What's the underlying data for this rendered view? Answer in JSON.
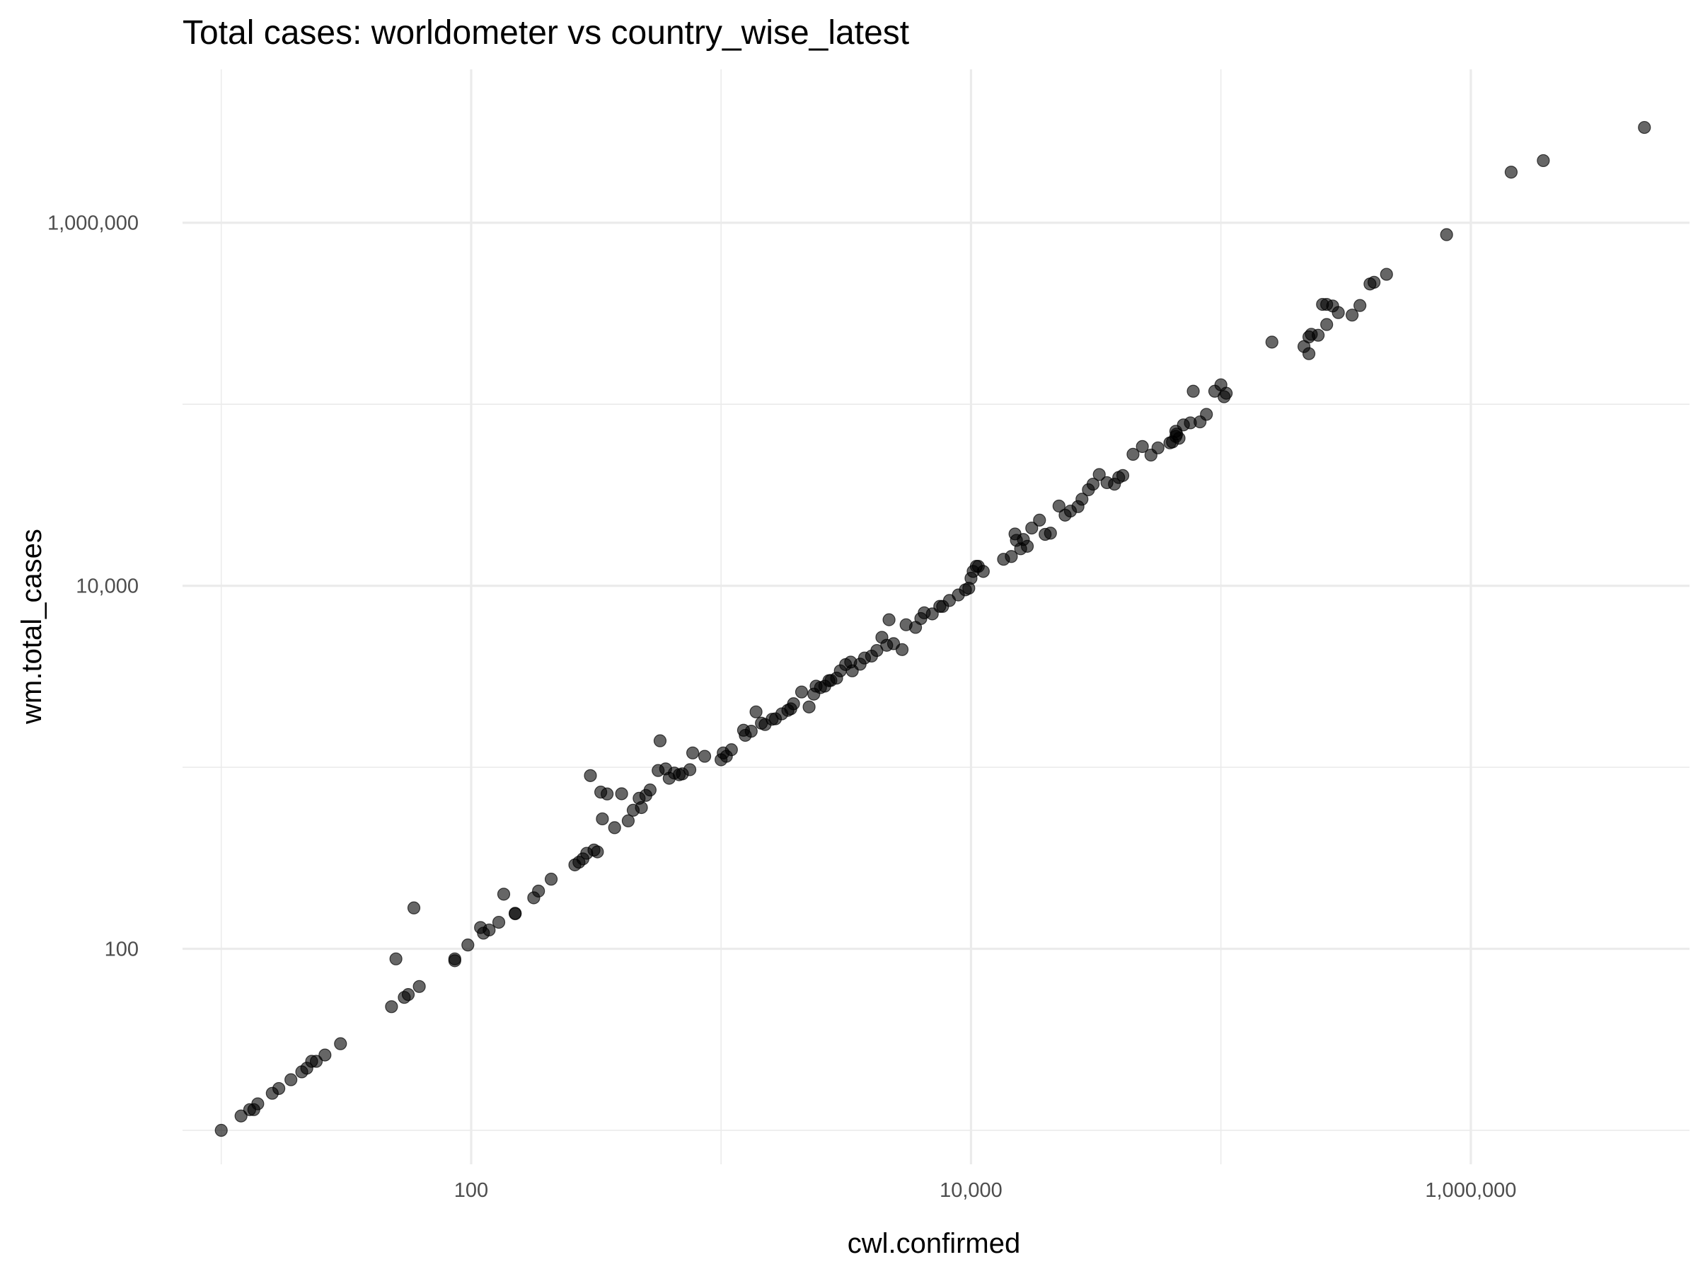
{
  "chart_data": {
    "type": "scatter",
    "title": "Total cases: worldometer vs country_wise_latest",
    "xlabel": "cwl.confirmed",
    "ylabel": "wm.total_cases",
    "x_scale": "log10",
    "y_scale": "log10",
    "xlim": [
      7,
      7500000
    ],
    "ylim": [
      6.5,
      7000000
    ],
    "x_ticks": [
      {
        "value": 100,
        "label": "100"
      },
      {
        "value": 10000,
        "label": "10,000"
      },
      {
        "value": 1000000,
        "label": "1,000,000"
      }
    ],
    "y_ticks": [
      {
        "value": 100,
        "label": "100"
      },
      {
        "value": 10000,
        "label": "10,000"
      },
      {
        "value": 1000000,
        "label": "1,000,000"
      }
    ],
    "grid": true,
    "legend": "none",
    "point_color": "#000000",
    "point_alpha": 0.6,
    "points": [
      [
        10,
        10
      ],
      [
        12,
        12
      ],
      [
        13,
        13
      ],
      [
        13.5,
        13
      ],
      [
        14,
        14
      ],
      [
        16,
        16
      ],
      [
        17,
        17
      ],
      [
        19,
        19
      ],
      [
        21,
        21
      ],
      [
        22,
        22
      ],
      [
        23,
        24
      ],
      [
        24,
        24
      ],
      [
        26,
        26
      ],
      [
        30,
        30
      ],
      [
        48,
        48
      ],
      [
        50,
        88
      ],
      [
        54,
        54
      ],
      [
        56,
        56
      ],
      [
        59,
        168
      ],
      [
        62,
        62
      ],
      [
        86,
        86
      ],
      [
        86,
        88
      ],
      [
        97,
        105
      ],
      [
        109,
        131
      ],
      [
        112,
        122
      ],
      [
        118,
        127
      ],
      [
        129,
        140
      ],
      [
        135,
        200
      ],
      [
        150,
        156
      ],
      [
        150,
        157
      ],
      [
        178,
        191
      ],
      [
        186,
        208
      ],
      [
        209,
        242
      ],
      [
        260,
        290
      ],
      [
        270,
        300
      ],
      [
        280,
        313
      ],
      [
        290,
        336
      ],
      [
        300,
        900
      ],
      [
        310,
        350
      ],
      [
        320,
        342
      ],
      [
        330,
        730
      ],
      [
        335,
        520
      ],
      [
        350,
        713
      ],
      [
        375,
        465
      ],
      [
        425,
        507
      ],
      [
        400,
        715
      ],
      [
        445,
        580
      ],
      [
        470,
        675
      ],
      [
        480,
        600
      ],
      [
        500,
        700
      ],
      [
        520,
        750
      ],
      [
        560,
        960
      ],
      [
        570,
        1400
      ],
      [
        600,
        980
      ],
      [
        620,
        870
      ],
      [
        650,
        930
      ],
      [
        680,
        910
      ],
      [
        700,
        920
      ],
      [
        750,
        970
      ],
      [
        770,
        1200
      ],
      [
        860,
        1150
      ],
      [
        1000,
        1100
      ],
      [
        1020,
        1200
      ],
      [
        1050,
        1150
      ],
      [
        1100,
        1250
      ],
      [
        1230,
        1600
      ],
      [
        1250,
        1500
      ],
      [
        1320,
        1580
      ],
      [
        1380,
        2020
      ],
      [
        1450,
        1750
      ],
      [
        1500,
        1720
      ],
      [
        1600,
        1840
      ],
      [
        1650,
        1850
      ],
      [
        1750,
        1970
      ],
      [
        1850,
        2060
      ],
      [
        1900,
        2100
      ],
      [
        1950,
        2240
      ],
      [
        2100,
        2600
      ],
      [
        2250,
        2150
      ],
      [
        2350,
        2530
      ],
      [
        2400,
        2800
      ],
      [
        2500,
        2750
      ],
      [
        2600,
        2800
      ],
      [
        2700,
        3000
      ],
      [
        2750,
        3010
      ],
      [
        2900,
        3100
      ],
      [
        3000,
        3400
      ],
      [
        3150,
        3680
      ],
      [
        3300,
        3800
      ],
      [
        3350,
        3400
      ],
      [
        3600,
        3700
      ],
      [
        3750,
        4000
      ],
      [
        4000,
        4100
      ],
      [
        4200,
        4400
      ],
      [
        4400,
        5200
      ],
      [
        4600,
        4700
      ],
      [
        4700,
        6500
      ],
      [
        4900,
        4800
      ],
      [
        5300,
        4450
      ],
      [
        5500,
        6100
      ],
      [
        6000,
        5900
      ],
      [
        6300,
        6600
      ],
      [
        6500,
        7100
      ],
      [
        7000,
        7000
      ],
      [
        7500,
        7700
      ],
      [
        7700,
        7700
      ],
      [
        8200,
        8300
      ],
      [
        8900,
        8900
      ],
      [
        9500,
        9500
      ],
      [
        9800,
        9700
      ],
      [
        10000,
        11000
      ],
      [
        10200,
        12000
      ],
      [
        10500,
        12800
      ],
      [
        10700,
        12800
      ],
      [
        11200,
        12000
      ],
      [
        13500,
        14000
      ],
      [
        14500,
        14500
      ],
      [
        15000,
        19300
      ],
      [
        15200,
        17800
      ],
      [
        15800,
        16000
      ],
      [
        16200,
        18000
      ],
      [
        16800,
        16500
      ],
      [
        17500,
        20800
      ],
      [
        18800,
        23000
      ],
      [
        19800,
        19200
      ],
      [
        20800,
        19500
      ],
      [
        22500,
        27500
      ],
      [
        23800,
        24500
      ],
      [
        25000,
        25800
      ],
      [
        26800,
        27300
      ],
      [
        27800,
        30000
      ],
      [
        29500,
        33800
      ],
      [
        30800,
        36300
      ],
      [
        32600,
        41000
      ],
      [
        35000,
        37000
      ],
      [
        37500,
        36300
      ],
      [
        39000,
        39500
      ],
      [
        40500,
        40500
      ],
      [
        44500,
        53000
      ],
      [
        48500,
        58500
      ],
      [
        52500,
        52500
      ],
      [
        56000,
        57500
      ],
      [
        62500,
        61300
      ],
      [
        64000,
        62000
      ],
      [
        66000,
        66500
      ],
      [
        66500,
        68500
      ],
      [
        66000,
        71000
      ],
      [
        68000,
        65000
      ],
      [
        70800,
        77000
      ],
      [
        75500,
        79000
      ],
      [
        77500,
        118000
      ],
      [
        82500,
        80000
      ],
      [
        87500,
        88000
      ],
      [
        94500,
        118000
      ],
      [
        100000,
        128000
      ],
      [
        103000,
        110000
      ],
      [
        105000,
        115000
      ],
      [
        160000,
        220000
      ],
      [
        215000,
        208000
      ],
      [
        225000,
        190000
      ],
      [
        225000,
        235000
      ],
      [
        230000,
        243000
      ],
      [
        245000,
        240000
      ],
      [
        255000,
        355000
      ],
      [
        265000,
        275000
      ],
      [
        265000,
        355000
      ],
      [
        280000,
        348000
      ],
      [
        295000,
        320000
      ],
      [
        335000,
        310000
      ],
      [
        360000,
        350000
      ],
      [
        395000,
        460000
      ],
      [
        410000,
        470000
      ],
      [
        460000,
        520000
      ],
      [
        800000,
        860000
      ],
      [
        1450000,
        1900000
      ],
      [
        1950000,
        2200000
      ],
      [
        4950000,
        3350000
      ]
    ]
  }
}
